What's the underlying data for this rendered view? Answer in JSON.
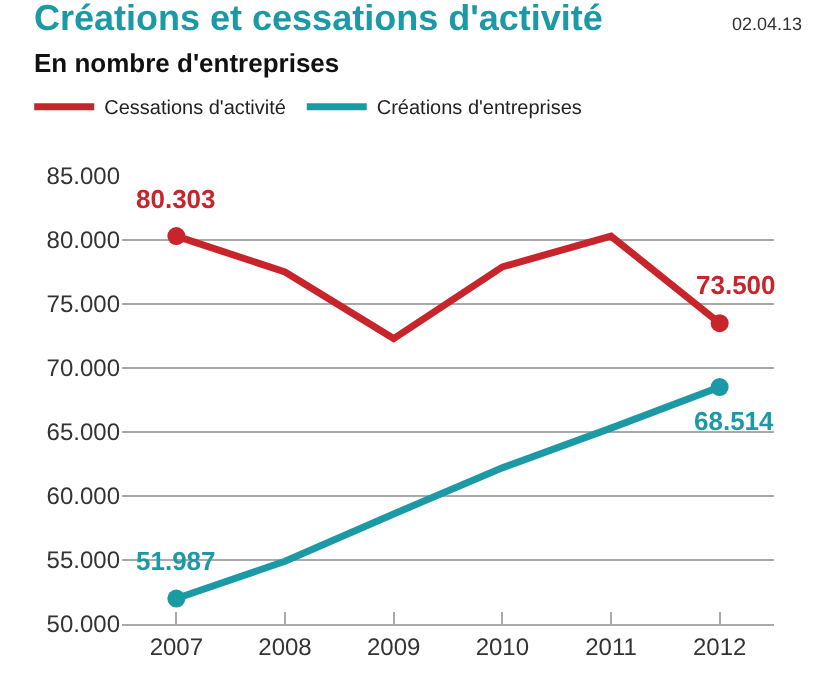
{
  "chart_data": {
    "type": "line",
    "title": "Créations et cessations d'activité",
    "subtitle": "En nombre d'entreprises",
    "annotations": [
      "02.04.13"
    ],
    "categories": [
      "2007",
      "2008",
      "2009",
      "2010",
      "2011",
      "2012"
    ],
    "series": [
      {
        "name": "Cessations d'activité",
        "color": "#c8242b",
        "values": [
          80303,
          77500,
          72300,
          77900,
          80300,
          73500
        ],
        "value_labels": [
          "80.303",
          null,
          null,
          null,
          null,
          "73.500"
        ]
      },
      {
        "name": "Créations d'entreprises",
        "color": "#1b9aa6",
        "values": [
          51987,
          54900,
          58600,
          62200,
          65300,
          68514
        ],
        "value_labels": [
          "51.987",
          null,
          null,
          null,
          null,
          "68.514"
        ]
      }
    ],
    "ylim": [
      50000,
      85000
    ],
    "yticks": [
      {
        "value": 50000,
        "label": "50.000"
      },
      {
        "value": 55000,
        "label": "55.000"
      },
      {
        "value": 60000,
        "label": "60.000"
      },
      {
        "value": 65000,
        "label": "65.000"
      },
      {
        "value": 70000,
        "label": "70.000"
      },
      {
        "value": 75000,
        "label": "75.000"
      },
      {
        "value": 80000,
        "label": "80.000"
      },
      {
        "value": 85000,
        "label": "85.000"
      }
    ],
    "grid": "y",
    "legend": "top",
    "line_style": "solid"
  }
}
